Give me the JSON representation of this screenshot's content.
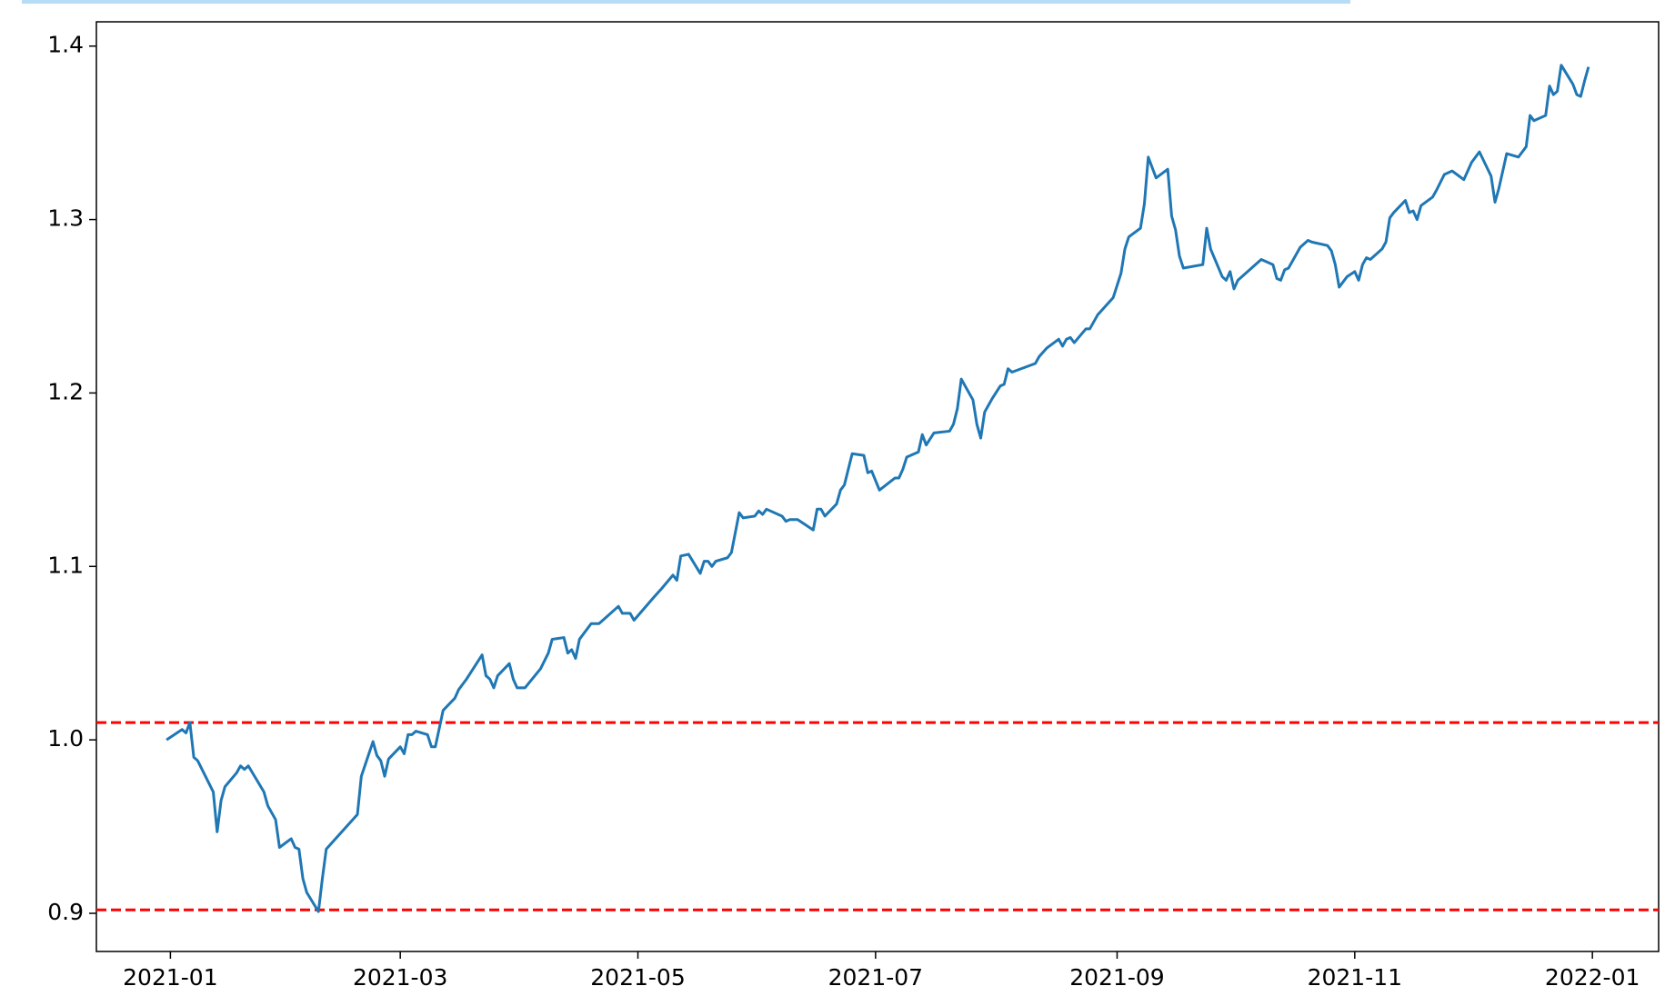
{
  "chart_data": {
    "type": "line",
    "x": [
      "2020-12-31",
      "2021-01-04",
      "2021-01-05",
      "2021-01-06",
      "2021-01-07",
      "2021-01-08",
      "2021-01-12",
      "2021-01-13",
      "2021-01-14",
      "2021-01-15",
      "2021-01-18",
      "2021-01-19",
      "2021-01-20",
      "2021-01-21",
      "2021-01-25",
      "2021-01-26",
      "2021-01-28",
      "2021-01-29",
      "2021-02-01",
      "2021-02-02",
      "2021-02-03",
      "2021-02-04",
      "2021-02-05",
      "2021-02-08",
      "2021-02-09",
      "2021-02-10",
      "2021-02-18",
      "2021-02-19",
      "2021-02-22",
      "2021-02-23",
      "2021-02-24",
      "2021-02-25",
      "2021-02-26",
      "2021-03-01",
      "2021-03-02",
      "2021-03-03",
      "2021-03-04",
      "2021-03-05",
      "2021-03-08",
      "2021-03-09",
      "2021-03-10",
      "2021-03-12",
      "2021-03-15",
      "2021-03-16",
      "2021-03-18",
      "2021-03-22",
      "2021-03-23",
      "2021-03-24",
      "2021-03-25",
      "2021-03-26",
      "2021-03-29",
      "2021-03-30",
      "2021-03-31",
      "2021-04-02",
      "2021-04-06",
      "2021-04-08",
      "2021-04-09",
      "2021-04-12",
      "2021-04-13",
      "2021-04-14",
      "2021-04-15",
      "2021-04-16",
      "2021-04-19",
      "2021-04-21",
      "2021-04-22",
      "2021-04-26",
      "2021-04-27",
      "2021-04-29",
      "2021-04-30",
      "2021-05-05",
      "2021-05-07",
      "2021-05-10",
      "2021-05-11",
      "2021-05-12",
      "2021-05-14",
      "2021-05-17",
      "2021-05-18",
      "2021-05-19",
      "2021-05-20",
      "2021-05-21",
      "2021-05-24",
      "2021-05-25",
      "2021-05-27",
      "2021-05-28",
      "2021-05-31",
      "2021-06-01",
      "2021-06-02",
      "2021-06-03",
      "2021-06-07",
      "2021-06-08",
      "2021-06-09",
      "2021-06-11",
      "2021-06-15",
      "2021-06-16",
      "2021-06-17",
      "2021-06-18",
      "2021-06-21",
      "2021-06-22",
      "2021-06-23",
      "2021-06-25",
      "2021-06-28",
      "2021-06-29",
      "2021-06-30",
      "2021-07-02",
      "2021-07-06",
      "2021-07-07",
      "2021-07-08",
      "2021-07-09",
      "2021-07-12",
      "2021-07-13",
      "2021-07-14",
      "2021-07-16",
      "2021-07-20",
      "2021-07-21",
      "2021-07-22",
      "2021-07-23",
      "2021-07-26",
      "2021-07-27",
      "2021-07-28",
      "2021-07-29",
      "2021-07-31",
      "2021-08-02",
      "2021-08-03",
      "2021-08-04",
      "2021-08-05",
      "2021-08-11",
      "2021-08-12",
      "2021-08-14",
      "2021-08-17",
      "2021-08-18",
      "2021-08-19",
      "2021-08-20",
      "2021-08-21",
      "2021-08-24",
      "2021-08-25",
      "2021-08-27",
      "2021-08-31",
      "2021-09-02",
      "2021-09-03",
      "2021-09-04",
      "2021-09-07",
      "2021-09-08",
      "2021-09-09",
      "2021-09-11",
      "2021-09-14",
      "2021-09-15",
      "2021-09-16",
      "2021-09-17",
      "2021-09-18",
      "2021-09-23",
      "2021-09-24",
      "2021-09-25",
      "2021-09-28",
      "2021-09-29",
      "2021-09-30",
      "2021-10-01",
      "2021-10-02",
      "2021-10-08",
      "2021-10-11",
      "2021-10-12",
      "2021-10-13",
      "2021-10-14",
      "2021-10-15",
      "2021-10-18",
      "2021-10-20",
      "2021-10-21",
      "2021-10-25",
      "2021-10-26",
      "2021-10-27",
      "2021-10-28",
      "2021-10-30",
      "2021-11-01",
      "2021-11-02",
      "2021-11-03",
      "2021-11-04",
      "2021-11-05",
      "2021-11-08",
      "2021-11-09",
      "2021-11-10",
      "2021-11-11",
      "2021-11-14",
      "2021-11-15",
      "2021-11-16",
      "2021-11-17",
      "2021-11-18",
      "2021-11-21",
      "2021-11-22",
      "2021-11-24",
      "2021-11-26",
      "2021-11-29",
      "2021-12-01",
      "2021-12-03",
      "2021-12-06",
      "2021-12-07",
      "2021-12-08",
      "2021-12-10",
      "2021-12-13",
      "2021-12-15",
      "2021-12-16",
      "2021-12-17",
      "2021-12-20",
      "2021-12-21",
      "2021-12-22",
      "2021-12-23",
      "2021-12-24",
      "2021-12-27",
      "2021-12-28",
      "2021-12-29",
      "2021-12-30",
      "2021-12-31"
    ],
    "values": [
      1.0,
      1.006,
      1.004,
      1.01,
      0.99,
      0.988,
      0.97,
      0.947,
      0.965,
      0.973,
      0.981,
      0.985,
      0.983,
      0.985,
      0.97,
      0.962,
      0.954,
      0.938,
      0.943,
      0.938,
      0.937,
      0.92,
      0.912,
      0.901,
      0.92,
      0.937,
      0.957,
      0.979,
      0.999,
      0.991,
      0.988,
      0.979,
      0.989,
      0.996,
      0.992,
      1.003,
      1.003,
      1.005,
      1.003,
      0.996,
      0.996,
      1.017,
      1.024,
      1.029,
      1.035,
      1.049,
      1.037,
      1.035,
      1.03,
      1.037,
      1.044,
      1.035,
      1.03,
      1.03,
      1.041,
      1.05,
      1.058,
      1.059,
      1.05,
      1.052,
      1.047,
      1.058,
      1.067,
      1.067,
      1.069,
      1.077,
      1.073,
      1.073,
      1.069,
      1.082,
      1.087,
      1.095,
      1.092,
      1.106,
      1.107,
      1.096,
      1.103,
      1.103,
      1.1,
      1.103,
      1.105,
      1.108,
      1.131,
      1.128,
      1.129,
      1.132,
      1.13,
      1.133,
      1.129,
      1.126,
      1.127,
      1.127,
      1.121,
      1.133,
      1.133,
      1.129,
      1.136,
      1.144,
      1.147,
      1.165,
      1.164,
      1.154,
      1.155,
      1.144,
      1.151,
      1.151,
      1.156,
      1.163,
      1.166,
      1.176,
      1.17,
      1.177,
      1.178,
      1.182,
      1.191,
      1.208,
      1.196,
      1.182,
      1.174,
      1.189,
      1.197,
      1.204,
      1.205,
      1.214,
      1.212,
      1.217,
      1.221,
      1.226,
      1.231,
      1.227,
      1.231,
      1.232,
      1.229,
      1.237,
      1.237,
      1.245,
      1.255,
      1.269,
      1.283,
      1.29,
      1.295,
      1.309,
      1.336,
      1.324,
      1.329,
      1.302,
      1.294,
      1.279,
      1.272,
      1.274,
      1.295,
      1.283,
      1.267,
      1.265,
      1.27,
      1.26,
      1.265,
      1.277,
      1.274,
      1.266,
      1.265,
      1.271,
      1.272,
      1.284,
      1.288,
      1.287,
      1.285,
      1.282,
      1.274,
      1.261,
      1.267,
      1.27,
      1.265,
      1.274,
      1.278,
      1.277,
      1.283,
      1.287,
      1.301,
      1.304,
      1.311,
      1.304,
      1.305,
      1.3,
      1.308,
      1.313,
      1.317,
      1.326,
      1.328,
      1.323,
      1.333,
      1.339,
      1.325,
      1.31,
      1.318,
      1.338,
      1.336,
      1.342,
      1.36,
      1.357,
      1.36,
      1.377,
      1.372,
      1.374,
      1.389,
      1.378,
      1.372,
      1.371,
      1.38,
      1.388
    ],
    "color": "#1f77b4",
    "xlim": [
      "2020-12-13",
      "2022-01-18"
    ],
    "xticks": [
      "2021-01",
      "2021-03",
      "2021-05",
      "2021-07",
      "2021-09",
      "2021-11",
      "2022-01"
    ],
    "ylim": [
      0.878,
      1.414
    ],
    "yticks": [
      0.9,
      {
        "value": 1,
        "label": "1.0"
      },
      1.1,
      1.2,
      1.3,
      1.4
    ],
    "hlines": [
      {
        "value": 1.01,
        "color": "#ff0000",
        "style": "dashed"
      },
      {
        "value": 0.902,
        "color": "#ff0000",
        "style": "dashed"
      }
    ],
    "grid": false
  }
}
